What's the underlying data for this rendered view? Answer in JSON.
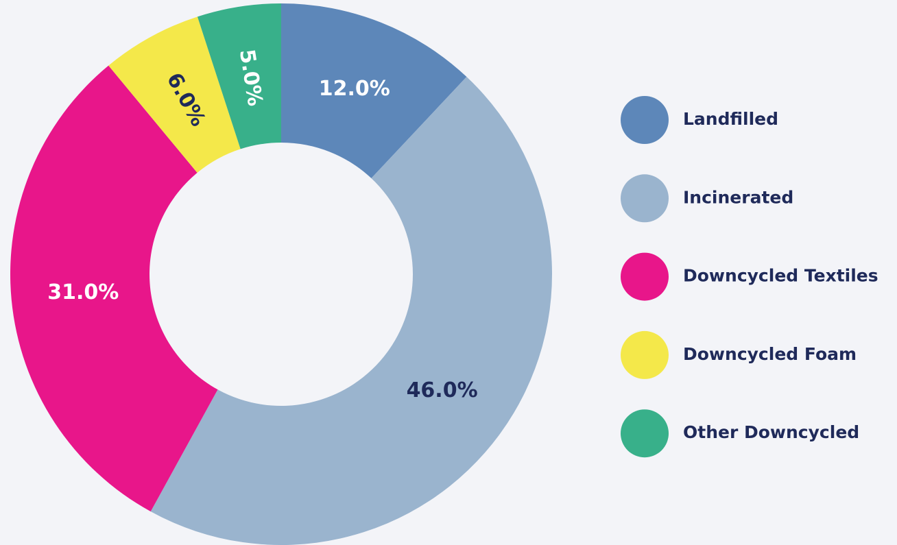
{
  "chart_data": {
    "type": "donut",
    "categories": [
      "Landfilled",
      "Incinerated",
      "Downcycled Textiles",
      "Downcycled Foam",
      "Other Downcycled"
    ],
    "values": [
      12,
      46,
      31,
      6,
      5
    ],
    "value_labels": [
      "12.0%",
      "46.0%",
      "31.0%",
      "6.0%",
      "5.0%"
    ],
    "colors": [
      "#5d87b9",
      "#9ab4ce",
      "#e8168a",
      "#f4e84a",
      "#38b08a"
    ],
    "legend": "right"
  }
}
